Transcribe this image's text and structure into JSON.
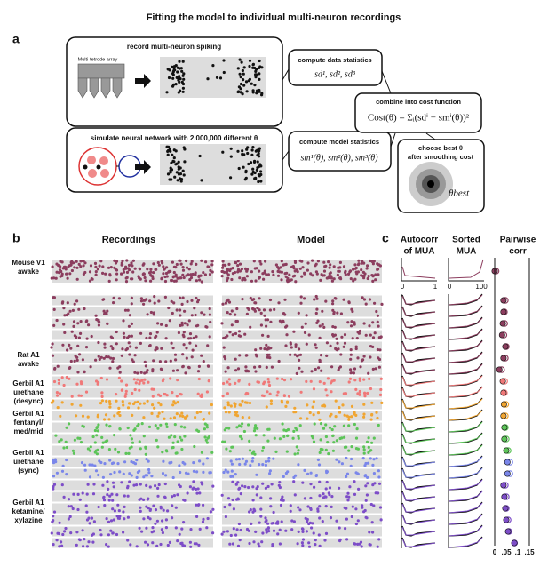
{
  "figure": {
    "title": "Fitting the model to individual multi-neuron recordings",
    "panel_a": {
      "letter": "a",
      "record_box": {
        "title": "record multi-neuron spiking",
        "array_label": "Multi-tetrode array"
      },
      "simulate_box": {
        "title": "simulate neural network with 2,000,000 different θ"
      },
      "data_stats": {
        "title": "compute data statistics",
        "formula": "sd¹, sd², sd³"
      },
      "model_stats": {
        "title": "compute model statistics",
        "formula": "sm¹(θ), sm²(θ), sm³(θ)"
      },
      "cost": {
        "title": "combine into cost function",
        "formula": "Cost(θ) = Σᵢ(sdⁱ − smⁱ(θ))²"
      },
      "choose": {
        "title_line1": "choose best θ",
        "title_line2": "after smoothing cost",
        "label": "θbest"
      }
    },
    "panel_b": {
      "letter": "b",
      "recordings_header": "Recordings",
      "model_header": "Model",
      "groups": [
        {
          "lines": [
            "Mouse V1",
            "awake"
          ],
          "color": "#8c3d5e"
        },
        {
          "lines": [
            "Rat A1",
            "awake"
          ],
          "color": "#f07878"
        },
        {
          "lines": [
            "Gerbil A1",
            "urethane",
            "(desync)"
          ],
          "color": "#f0a531"
        },
        {
          "lines": [
            "Gerbil A1",
            "fentanyl/",
            "med/mid"
          ],
          "color": "#5cc458"
        },
        {
          "lines": [
            "Gerbil A1",
            "urethane",
            "(sync)"
          ],
          "color": "#7a86ea"
        },
        {
          "lines": [
            "Gerbil A1",
            "ketamine/",
            "xylazine"
          ],
          "color": "#7d4dc8"
        }
      ]
    },
    "panel_c": {
      "letter": "c",
      "autocorr": {
        "title": [
          "Autocorr",
          "of MUA"
        ],
        "xticks": [
          "0",
          "1"
        ]
      },
      "sorted": {
        "title": [
          "Sorted",
          "MUA"
        ],
        "xticks": [
          "0",
          "100"
        ]
      },
      "pairwise": {
        "title": [
          "Pairwise",
          "corr"
        ],
        "xlim": [
          0,
          0.15
        ],
        "xticks": [
          0,
          {
            "value": 0.05,
            "label": ".05"
          },
          {
            "value": 0.1,
            "label": ".1"
          },
          {
            "value": 0.15,
            "label": ".15"
          }
        ],
        "colors": [
          "#8c3d5e",
          "#8c3d5e",
          "#8c3d5e",
          "#8c3d5e",
          "#8c3d5e",
          "#8c3d5e",
          "#8c3d5e",
          "#8c3d5e",
          "#f07878",
          "#f07878",
          "#f0a531",
          "#f0a531",
          "#5cc458",
          "#5cc458",
          "#5cc458",
          "#7a86ea",
          "#7a86ea",
          "#7d4dc8",
          "#7d4dc8",
          "#7d4dc8",
          "#7d4dc8",
          "#7d4dc8",
          "#7d4dc8"
        ],
        "recordings": [
          0.0,
          0.038,
          0.038,
          0.035,
          0.032,
          0.046,
          0.038,
          0.02,
          0.035,
          0.038,
          0.04,
          0.038,
          0.042,
          0.042,
          0.05,
          0.055,
          0.055,
          0.038,
          0.042,
          0.046,
          0.05,
          0.058,
          0.085
        ],
        "model": [
          0.0,
          0.04,
          0.036,
          0.037,
          0.034,
          0.044,
          0.04,
          0.024,
          0.037,
          0.036,
          0.042,
          0.04,
          0.04,
          0.044,
          0.052,
          0.06,
          0.06,
          0.04,
          0.044,
          0.044,
          0.052,
          0.056,
          0.08
        ]
      }
    }
  }
}
